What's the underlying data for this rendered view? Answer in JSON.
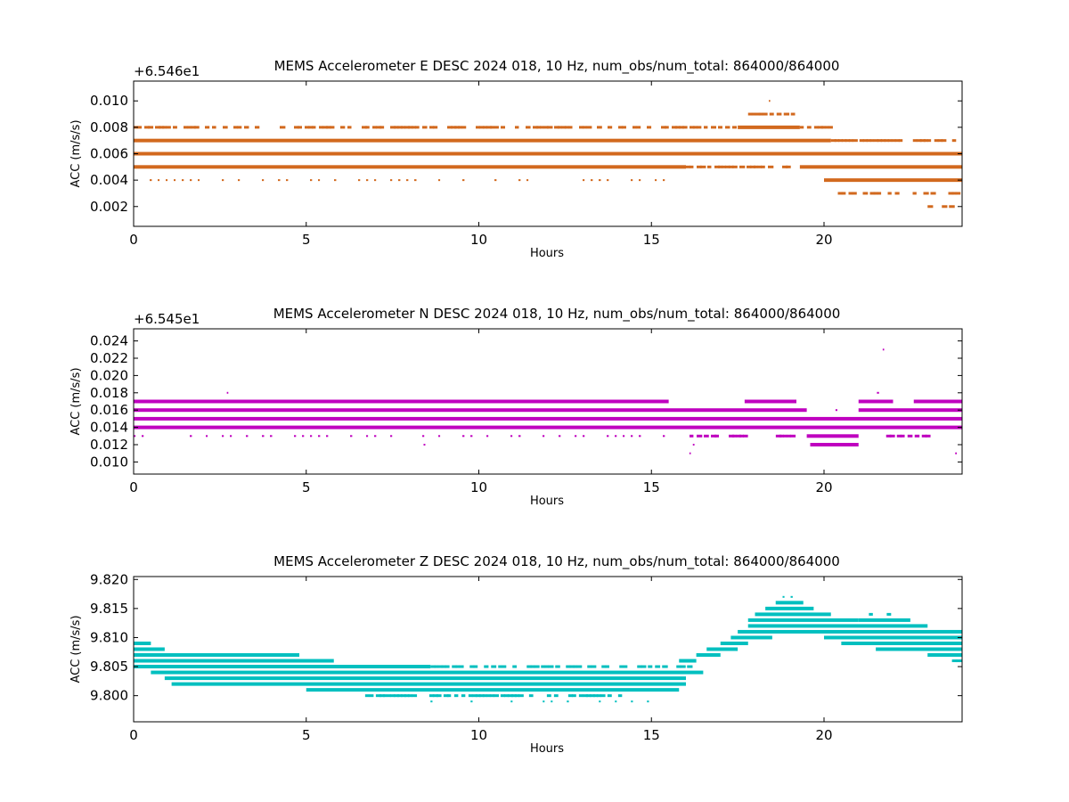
{
  "chart_data": [
    {
      "type": "scatter",
      "title": "MEMS Accelerometer E DESC 2024 018, 10 Hz, num_obs/num_total: 864000/864000",
      "xlabel": "Hours",
      "ylabel": "ACC (m/s/s)",
      "offset_label": "+6.546e1",
      "offset": 65.46,
      "xlim": [
        0,
        24
      ],
      "ylim": [
        0.0005,
        0.0115
      ],
      "xticks": [
        0,
        5,
        10,
        15,
        20
      ],
      "xtick_labels": [
        "0",
        "5",
        "10",
        "15",
        "20"
      ],
      "yticks": [
        0.002,
        0.004,
        0.006,
        0.008,
        0.01
      ],
      "ytick_labels": [
        "0.002",
        "0.004",
        "0.006",
        "0.008",
        "0.010"
      ],
      "color": "#d2691e",
      "grid": false,
      "bands": [
        {
          "y": 0.007,
          "x": [
            0,
            20.2
          ],
          "style": "solid"
        },
        {
          "y": 0.007,
          "x": [
            20.2,
            24
          ],
          "style": "sparse"
        },
        {
          "y": 0.006,
          "x": [
            0,
            24
          ],
          "style": "solid"
        },
        {
          "y": 0.005,
          "x": [
            0,
            16
          ],
          "style": "solid"
        },
        {
          "y": 0.005,
          "x": [
            16,
            19.3
          ],
          "style": "sparse"
        },
        {
          "y": 0.005,
          "x": [
            19.3,
            24
          ],
          "style": "solid"
        },
        {
          "y": 0.008,
          "x": [
            0,
            17.5
          ],
          "style": "sparse"
        },
        {
          "y": 0.008,
          "x": [
            17.5,
            19.3
          ],
          "style": "solid"
        },
        {
          "y": 0.008,
          "x": [
            19.3,
            20.2
          ],
          "style": "sparse"
        },
        {
          "y": 0.004,
          "x": [
            0,
            15.8
          ],
          "style": "dots"
        },
        {
          "y": 0.004,
          "x": [
            19.3,
            19.5
          ],
          "style": "dots"
        },
        {
          "y": 0.004,
          "x": [
            20,
            24
          ],
          "style": "solid"
        },
        {
          "y": 0.009,
          "x": [
            17.8,
            19.1
          ],
          "style": "sparse"
        },
        {
          "y": 0.003,
          "x": [
            20.4,
            23.9
          ],
          "style": "sparse"
        },
        {
          "y": 0.002,
          "x": [
            23,
            23.7
          ],
          "style": "sparse"
        },
        {
          "y": 0.01,
          "x": [
            18.4,
            18.5
          ],
          "style": "dots"
        }
      ]
    },
    {
      "type": "scatter",
      "title": "MEMS Accelerometer N DESC 2024 018, 10 Hz, num_obs/num_total: 864000/864000",
      "xlabel": "Hours",
      "ylabel": "ACC (m/s/s)",
      "offset_label": "+6.545e1",
      "offset": 65.45,
      "xlim": [
        0,
        24
      ],
      "ylim": [
        0.0086,
        0.0254
      ],
      "xticks": [
        0,
        5,
        10,
        15,
        20
      ],
      "xtick_labels": [
        "0",
        "5",
        "10",
        "15",
        "20"
      ],
      "yticks": [
        0.01,
        0.012,
        0.014,
        0.016,
        0.018,
        0.02,
        0.022,
        0.024
      ],
      "ytick_labels": [
        "0.010",
        "0.012",
        "0.014",
        "0.016",
        "0.018",
        "0.020",
        "0.022",
        "0.024"
      ],
      "color": "#bf00bf",
      "grid": false,
      "bands": [
        {
          "y": 0.015,
          "x": [
            0,
            24
          ],
          "style": "solid"
        },
        {
          "y": 0.014,
          "x": [
            0,
            24
          ],
          "style": "solid"
        },
        {
          "y": 0.016,
          "x": [
            0,
            19.5
          ],
          "style": "solid"
        },
        {
          "y": 0.016,
          "x": [
            21,
            24
          ],
          "style": "solid"
        },
        {
          "y": 0.017,
          "x": [
            0,
            15.5
          ],
          "style": "solid"
        },
        {
          "y": 0.017,
          "x": [
            17.7,
            19.2
          ],
          "style": "solid"
        },
        {
          "y": 0.017,
          "x": [
            21,
            22
          ],
          "style": "solid"
        },
        {
          "y": 0.017,
          "x": [
            22.6,
            24
          ],
          "style": "solid"
        },
        {
          "y": 0.013,
          "x": [
            0,
            15.8
          ],
          "style": "dots"
        },
        {
          "y": 0.013,
          "x": [
            16,
            17.8
          ],
          "style": "sparse"
        },
        {
          "y": 0.013,
          "x": [
            18.5,
            19.1
          ],
          "style": "sparse"
        },
        {
          "y": 0.013,
          "x": [
            19.5,
            21
          ],
          "style": "solid"
        },
        {
          "y": 0.013,
          "x": [
            21.8,
            23
          ],
          "style": "sparse"
        },
        {
          "y": 0.012,
          "x": [
            19.6,
            21
          ],
          "style": "solid"
        },
        {
          "y": 0.018,
          "x": [
            17.8,
            18.0
          ],
          "style": "dots"
        },
        {
          "y": 0.018,
          "x": [
            19.1,
            19.3
          ],
          "style": "dots"
        },
        {
          "y": 0.018,
          "x": [
            21.3,
            21.6
          ],
          "style": "dots"
        },
        {
          "y": 0.018,
          "x": [
            2.7,
            2.75
          ],
          "style": "dots"
        },
        {
          "y": 0.016,
          "x": [
            20.1,
            20.5
          ],
          "style": "dots"
        },
        {
          "y": 0.012,
          "x": [
            8.4,
            8.45
          ],
          "style": "dots"
        },
        {
          "y": 0.012,
          "x": [
            16.2,
            16.25
          ],
          "style": "dots"
        },
        {
          "y": 0.011,
          "x": [
            16.1,
            16.15
          ],
          "style": "dots"
        },
        {
          "y": 0.011,
          "x": [
            23.8,
            23.85
          ],
          "style": "dots"
        },
        {
          "y": 0.023,
          "x": [
            21.7,
            21.75
          ],
          "style": "dots"
        }
      ]
    },
    {
      "type": "scatter",
      "title": "MEMS Accelerometer Z DESC 2024 018, 10 Hz, num_obs/num_total: 864000/864000",
      "xlabel": "Hours",
      "ylabel": "ACC (m/s/s)",
      "offset_label": "",
      "offset": 0,
      "xlim": [
        0,
        24
      ],
      "ylim": [
        9.7955,
        9.8205
      ],
      "xticks": [
        0,
        5,
        10,
        15,
        20
      ],
      "xtick_labels": [
        "0",
        "5",
        "10",
        "15",
        "20"
      ],
      "yticks": [
        9.8,
        9.805,
        9.81,
        9.815,
        9.82
      ],
      "ytick_labels": [
        "9.800",
        "9.805",
        "9.810",
        "9.815",
        "9.820"
      ],
      "color": "#00bfbf",
      "grid": false,
      "bands": [
        {
          "y": 9.809,
          "x": [
            0,
            0.5
          ],
          "style": "solid"
        },
        {
          "y": 9.808,
          "x": [
            0,
            0.9
          ],
          "style": "solid"
        },
        {
          "y": 9.807,
          "x": [
            0,
            4.8
          ],
          "style": "solid"
        },
        {
          "y": 9.806,
          "x": [
            0,
            5.8
          ],
          "style": "solid"
        },
        {
          "y": 9.805,
          "x": [
            0,
            8.6
          ],
          "style": "solid"
        },
        {
          "y": 9.805,
          "x": [
            8.6,
            16.2
          ],
          "style": "sparse"
        },
        {
          "y": 9.804,
          "x": [
            0.5,
            16.5
          ],
          "style": "solid"
        },
        {
          "y": 9.803,
          "x": [
            0.9,
            16.0
          ],
          "style": "solid"
        },
        {
          "y": 9.802,
          "x": [
            1.1,
            16.0
          ],
          "style": "solid"
        },
        {
          "y": 9.801,
          "x": [
            5.0,
            15.8
          ],
          "style": "solid"
        },
        {
          "y": 9.8,
          "x": [
            6.5,
            14.2
          ],
          "style": "sparse"
        },
        {
          "y": 9.806,
          "x": [
            15.8,
            16.3
          ],
          "style": "solid"
        },
        {
          "y": 9.807,
          "x": [
            16.3,
            17.0
          ],
          "style": "solid"
        },
        {
          "y": 9.808,
          "x": [
            16.6,
            17.5
          ],
          "style": "solid"
        },
        {
          "y": 9.809,
          "x": [
            17.0,
            17.8
          ],
          "style": "solid"
        },
        {
          "y": 9.81,
          "x": [
            17.3,
            18.5
          ],
          "style": "solid"
        },
        {
          "y": 9.811,
          "x": [
            17.5,
            20.0
          ],
          "style": "solid"
        },
        {
          "y": 9.812,
          "x": [
            17.8,
            23.0
          ],
          "style": "solid"
        },
        {
          "y": 9.813,
          "x": [
            17.8,
            21.0
          ],
          "style": "solid"
        },
        {
          "y": 9.813,
          "x": [
            21.0,
            22.5
          ],
          "style": "solid"
        },
        {
          "y": 9.814,
          "x": [
            18.0,
            20.2
          ],
          "style": "solid"
        },
        {
          "y": 9.815,
          "x": [
            18.3,
            19.7
          ],
          "style": "solid"
        },
        {
          "y": 9.816,
          "x": [
            18.6,
            19.4
          ],
          "style": "solid"
        },
        {
          "y": 9.817,
          "x": [
            18.8,
            19.3
          ],
          "style": "dots"
        },
        {
          "y": 9.811,
          "x": [
            20.0,
            24.0
          ],
          "style": "solid"
        },
        {
          "y": 9.81,
          "x": [
            20.0,
            24.0
          ],
          "style": "solid"
        },
        {
          "y": 9.809,
          "x": [
            20.5,
            24.0
          ],
          "style": "solid"
        },
        {
          "y": 9.808,
          "x": [
            21.5,
            24.0
          ],
          "style": "solid"
        },
        {
          "y": 9.807,
          "x": [
            23.0,
            24.0
          ],
          "style": "solid"
        },
        {
          "y": 9.806,
          "x": [
            23.5,
            24.0
          ],
          "style": "sparse"
        },
        {
          "y": 9.814,
          "x": [
            21.3,
            21.9
          ],
          "style": "sparse"
        },
        {
          "y": 9.799,
          "x": [
            8.6,
            15.0
          ],
          "style": "dots"
        }
      ]
    }
  ]
}
